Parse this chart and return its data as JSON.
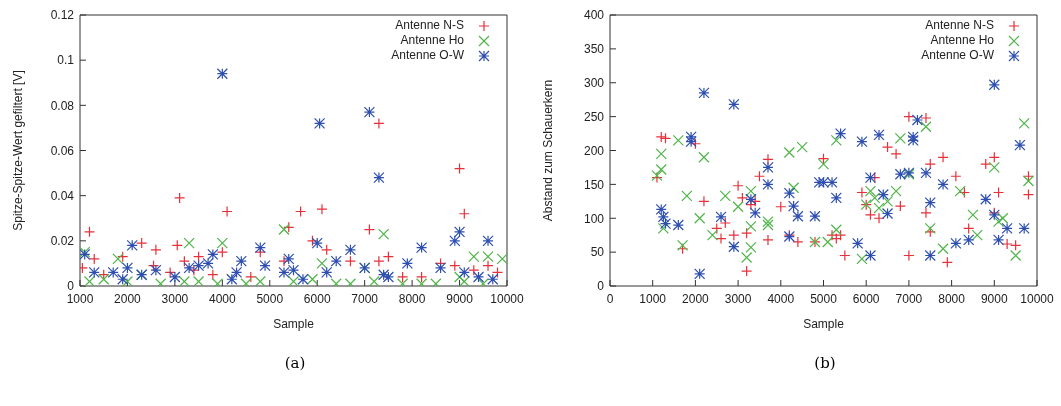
{
  "chart_data": [
    {
      "type": "scatter",
      "xlabel": "Sample",
      "ylabel": "Spitze-Spitze-Wert gefiltert [V]",
      "xlim": [
        1000,
        10000
      ],
      "xticks": [
        1000,
        2000,
        3000,
        4000,
        5000,
        6000,
        7000,
        8000,
        9000,
        10000
      ],
      "ylim": [
        0,
        0.12
      ],
      "yticks": [
        0,
        0.02,
        0.04,
        0.06,
        0.08,
        0.1,
        0.12
      ],
      "legend": "top right",
      "annotations": [
        "(a)"
      ],
      "series": [
        {
          "name": "Antenne N-S",
          "color": "#e8303a",
          "marker": "cross",
          "x": [
            1050,
            1200,
            1300,
            1500,
            1900,
            2300,
            2600,
            2550,
            2900,
            3050,
            3100,
            3200,
            3400,
            3500,
            3800,
            4000,
            4100,
            4600,
            4800,
            5300,
            5400,
            5650,
            5900,
            6100,
            6200,
            6700,
            7100,
            7300,
            7300,
            7500,
            7800,
            8200,
            8600,
            8900,
            9000,
            9100,
            9300,
            9600,
            9800
          ],
          "values": [
            0.008,
            0.024,
            0.012,
            0.005,
            0.013,
            0.019,
            0.016,
            0.009,
            0.006,
            0.018,
            0.039,
            0.011,
            0.007,
            0.013,
            0.005,
            0.015,
            0.033,
            0.004,
            0.015,
            0.011,
            0.026,
            0.033,
            0.02,
            0.034,
            0.016,
            0.011,
            0.025,
            0.072,
            0.011,
            0.013,
            0.004,
            0.004,
            0.01,
            0.009,
            0.052,
            0.032,
            0.007,
            0.009,
            0.006
          ]
        },
        {
          "name": "Antenne Ho",
          "color": "#4fb548",
          "marker": "cross",
          "x": [
            1100,
            1200,
            1500,
            1800,
            2000,
            2300,
            2700,
            3200,
            3300,
            3500,
            3900,
            4000,
            4500,
            4800,
            5300,
            5500,
            5900,
            6100,
            6400,
            6700,
            7000,
            7200,
            7400,
            7800,
            8200,
            8500,
            9000,
            9100,
            9300,
            9500,
            9600,
            9900
          ],
          "values": [
            0.015,
            0.002,
            0.003,
            0.012,
            0.002,
            0.005,
            0.001,
            0.002,
            0.019,
            0.002,
            0.001,
            0.019,
            0.001,
            0.002,
            0.025,
            0.002,
            0.003,
            0.01,
            0.001,
            0.001,
            0.008,
            0.002,
            0.023,
            0.001,
            0.001,
            0.001,
            0.004,
            0.002,
            0.013,
            0.001,
            0.013,
            0.012
          ]
        },
        {
          "name": "Antenne O-W",
          "color": "#2e4fb0",
          "marker": "cross",
          "x": [
            1100,
            1300,
            1700,
            1900,
            2000,
            2100,
            2300,
            2600,
            3000,
            3300,
            3500,
            3700,
            3800,
            4000,
            4200,
            4300,
            4400,
            4800,
            4900,
            5300,
            5400,
            5500,
            5700,
            6000,
            6050,
            6200,
            6400,
            6700,
            7000,
            7100,
            7300,
            7400,
            7500,
            7900,
            8200,
            8600,
            8900,
            9000,
            9100,
            9400,
            9600,
            9700
          ],
          "values": [
            0.014,
            0.006,
            0.006,
            0.003,
            0.008,
            0.018,
            0.005,
            0.007,
            0.004,
            0.008,
            0.009,
            0.01,
            0.014,
            0.094,
            0.003,
            0.006,
            0.011,
            0.017,
            0.009,
            0.006,
            0.012,
            0.007,
            0.003,
            0.019,
            0.072,
            0.006,
            0.011,
            0.016,
            0.008,
            0.077,
            0.048,
            0.005,
            0.004,
            0.01,
            0.017,
            0.008,
            0.02,
            0.024,
            0.006,
            0.004,
            0.02,
            0.003
          ]
        }
      ]
    },
    {
      "type": "scatter",
      "xlabel": "Sample",
      "ylabel": "Abstand zum Schauerkern",
      "xlim": [
        0,
        10000
      ],
      "xticks": [
        0,
        1000,
        2000,
        3000,
        4000,
        5000,
        6000,
        7000,
        8000,
        9000,
        10000
      ],
      "ylim": [
        0,
        400
      ],
      "yticks": [
        0,
        50,
        100,
        150,
        200,
        250,
        300,
        350,
        400
      ],
      "legend": "top right",
      "annotations": [
        "(b)"
      ],
      "series": [
        {
          "name": "Antenne N-S",
          "color": "#e8303a",
          "marker": "cross",
          "x": [
            1100,
            1200,
            1300,
            1700,
            2000,
            2200,
            2500,
            2700,
            2600,
            2900,
            3000,
            3100,
            3200,
            3200,
            3300,
            3400,
            3500,
            3700,
            3700,
            4000,
            4200,
            4400,
            4800,
            5000,
            5200,
            5300,
            5400,
            5500,
            5900,
            6000,
            6100,
            6200,
            6300,
            6500,
            6700,
            6800,
            7000,
            7000,
            7400,
            7500,
            7400,
            7500,
            7800,
            7900,
            8100,
            8300,
            8400,
            8800,
            9000,
            9000,
            9100,
            9300,
            9500,
            9800,
            9800
          ],
          "values": [
            160,
            220,
            218,
            55,
            210,
            125,
            85,
            93,
            70,
            75,
            148,
            130,
            78,
            22,
            120,
            125,
            162,
            187,
            68,
            117,
            75,
            65,
            65,
            188,
            75,
            70,
            75,
            45,
            138,
            120,
            105,
            160,
            100,
            205,
            195,
            118,
            250,
            45,
            248,
            180,
            108,
            80,
            190,
            35,
            162,
            138,
            85,
            180,
            190,
            108,
            138,
            62,
            60,
            162,
            135
          ]
        },
        {
          "name": "Antenne Ho",
          "color": "#4fb548",
          "marker": "cross",
          "x": [
            1100,
            1200,
            1200,
            1250,
            1600,
            1700,
            1800,
            2100,
            2200,
            2400,
            2700,
            3000,
            3200,
            3300,
            3300,
            3300,
            3700,
            3700,
            4200,
            4300,
            4500,
            4800,
            5000,
            5100,
            5300,
            5300,
            5900,
            6000,
            6100,
            6200,
            6300,
            6500,
            6700,
            6800,
            7000,
            7400,
            7500,
            7800,
            8200,
            8500,
            8600,
            9000,
            9100,
            9200,
            9500,
            9700,
            9800
          ],
          "values": [
            163,
            195,
            172,
            85,
            215,
            60,
            133,
            100,
            190,
            75,
            133,
            117,
            42,
            88,
            140,
            57,
            95,
            90,
            197,
            145,
            205,
            65,
            180,
            65,
            215,
            83,
            40,
            120,
            140,
            130,
            115,
            125,
            140,
            218,
            165,
            235,
            85,
            55,
            140,
            105,
            75,
            175,
            95,
            100,
            45,
            240,
            155
          ]
        },
        {
          "name": "Antenne O-W",
          "color": "#2e4fb0",
          "marker": "cross",
          "x": [
            1200,
            1250,
            1300,
            1600,
            1900,
            1900,
            2100,
            2200,
            2600,
            2900,
            2900,
            3300,
            3400,
            3700,
            3700,
            4200,
            4200,
            4400,
            4300,
            4800,
            4900,
            5000,
            5200,
            5300,
            5400,
            5800,
            5900,
            6100,
            6100,
            6300,
            6400,
            6500,
            6800,
            7000,
            7100,
            7100,
            7200,
            7400,
            7500,
            7500,
            7800,
            8100,
            8400,
            8800,
            9000,
            9000,
            9100,
            9300,
            9600,
            9700
          ],
          "values": [
            113,
            102,
            92,
            90,
            220,
            213,
            18,
            285,
            102,
            268,
            58,
            128,
            108,
            175,
            150,
            73,
            137,
            103,
            118,
            103,
            153,
            153,
            153,
            130,
            225,
            63,
            213,
            160,
            45,
            223,
            135,
            107,
            165,
            167,
            215,
            220,
            245,
            167,
            45,
            123,
            150,
            63,
            68,
            128,
            105,
            297,
            68,
            85,
            208,
            85
          ]
        }
      ]
    }
  ]
}
